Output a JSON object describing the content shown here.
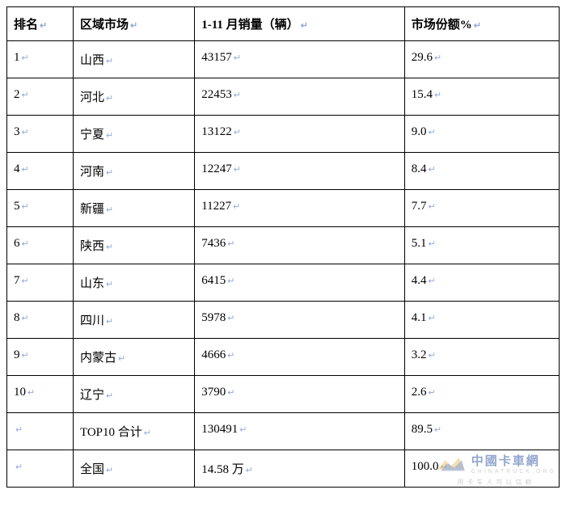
{
  "table": {
    "headers": {
      "rank": "排名",
      "region": "区域市场",
      "sales": "1-11 月销量（辆）",
      "share": "市场份额%"
    },
    "rows": [
      {
        "rank": "1",
        "region": "山西",
        "sales": "43157",
        "share": "29.6"
      },
      {
        "rank": "2",
        "region": "河北",
        "sales": "22453",
        "share": "15.4"
      },
      {
        "rank": "3",
        "region": "宁夏",
        "sales": "13122",
        "share": "9.0"
      },
      {
        "rank": "4",
        "region": "河南",
        "sales": "12247",
        "share": "8.4"
      },
      {
        "rank": "5",
        "region": "新疆",
        "sales": "11227",
        "share": "7.7"
      },
      {
        "rank": "6",
        "region": "陕西",
        "sales": "7436",
        "share": "5.1"
      },
      {
        "rank": "7",
        "region": "山东",
        "sales": "6415",
        "share": "4.4"
      },
      {
        "rank": "8",
        "region": "四川",
        "sales": "5978",
        "share": "4.1"
      },
      {
        "rank": "9",
        "region": "内蒙古",
        "sales": "4666",
        "share": "3.2"
      },
      {
        "rank": "10",
        "region": "辽宁",
        "sales": "3790",
        "share": "2.6"
      },
      {
        "rank": "",
        "region": "TOP10 合计",
        "sales": "130491",
        "share": "89.5"
      },
      {
        "rank": "",
        "region": "全国",
        "sales": "14.58 万",
        "share": "100.0"
      }
    ],
    "marker": "↵",
    "border_color": "#000000",
    "text_color": "#000000",
    "marker_color": "#8faadc",
    "background_color": "#ffffff",
    "font_family": "SimSun",
    "base_fontsize": 15,
    "column_widths_pct": [
      12,
      22,
      38,
      28
    ]
  },
  "watermark": {
    "main": "中國卡車網",
    "sub": "CHINATRUCK.ORG",
    "under": "用卡车人可以信赖",
    "main_color": "#3a5fa8",
    "sub_color": "#aaaaaa",
    "logo_color1": "#e8b64a",
    "logo_color2": "#4a6fb0"
  }
}
